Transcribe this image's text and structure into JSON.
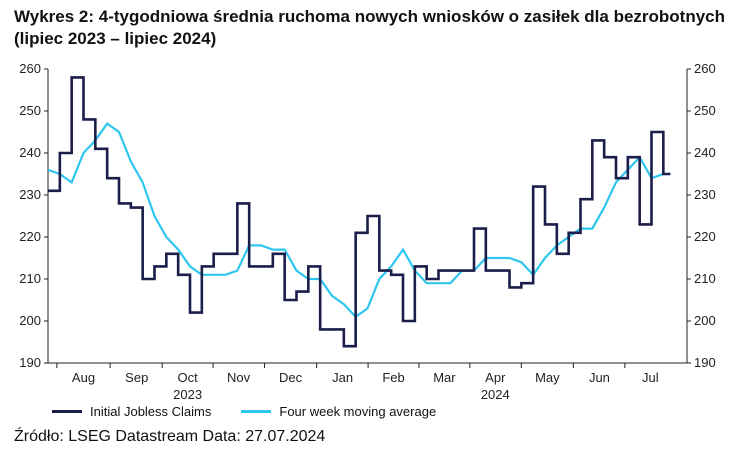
{
  "title": {
    "line1": "Wykres 2: 4-tygodniowa średnia ruchoma nowych wniosków o zasiłek dla bezrobotnych",
    "line2": "(lipiec 2023 – lipiec 2024)"
  },
  "source": "Źródło: LSEG Datastream Data: 27.07.2024",
  "colors": {
    "claims": "#1b1d4a",
    "average": "#2ec6ef",
    "axis": "#222222"
  },
  "chart_data": {
    "type": "line",
    "title": "Wykres 2: 4-tygodniowa średnia ruchoma nowych wniosków o zasiłek dla bezrobotnych (lipiec 2023 – lipiec 2024)",
    "ylim": [
      190,
      260
    ],
    "yticks": [
      190,
      200,
      210,
      220,
      230,
      240,
      250,
      260
    ],
    "y_axis_both_sides": true,
    "grid": false,
    "legend_position": "bottom",
    "xlim": [
      0,
      54
    ],
    "month_ticks": [
      {
        "label": "Aug",
        "x": 3
      },
      {
        "label": "Sep",
        "x": 7.5
      },
      {
        "label": "Oct",
        "x": 11.8
      },
      {
        "label": "Nov",
        "x": 16.1
      },
      {
        "label": "Dec",
        "x": 20.5
      },
      {
        "label": "Jan",
        "x": 24.9
      },
      {
        "label": "Feb",
        "x": 29.2
      },
      {
        "label": "Mar",
        "x": 33.5
      },
      {
        "label": "Apr",
        "x": 37.8
      },
      {
        "label": "May",
        "x": 42.2
      },
      {
        "label": "Jun",
        "x": 46.6
      },
      {
        "label": "Jul",
        "x": 50.9
      }
    ],
    "year_labels": [
      {
        "label": "2023",
        "x": 11.8
      },
      {
        "label": "2024",
        "x": 37.8
      }
    ],
    "series": [
      {
        "name": "Initial Jobless Claims",
        "step": true,
        "values": [
          231,
          240,
          258,
          248,
          241,
          234,
          228,
          227,
          210,
          213,
          216,
          211,
          202,
          213,
          216,
          216,
          228,
          213,
          213,
          216,
          205,
          207,
          213,
          198,
          198,
          194,
          221,
          225,
          212,
          211,
          200,
          213,
          210,
          212,
          212,
          212,
          222,
          212,
          212,
          208,
          209,
          232,
          223,
          216,
          221,
          229,
          243,
          239,
          234,
          239,
          223,
          245,
          235
        ]
      },
      {
        "name": "Four week moving average",
        "step": false,
        "values": [
          236,
          235,
          233,
          240,
          243,
          247,
          245,
          238,
          233,
          225,
          220,
          217,
          213,
          211,
          211,
          211,
          212,
          218,
          218,
          217,
          217,
          212,
          210,
          210,
          206,
          204,
          201,
          203,
          210,
          213,
          217,
          212,
          209,
          209,
          209,
          212,
          212,
          215,
          215,
          215,
          214,
          211,
          215,
          218,
          220,
          222,
          222,
          227,
          233,
          236,
          239,
          234,
          235
        ]
      }
    ]
  }
}
